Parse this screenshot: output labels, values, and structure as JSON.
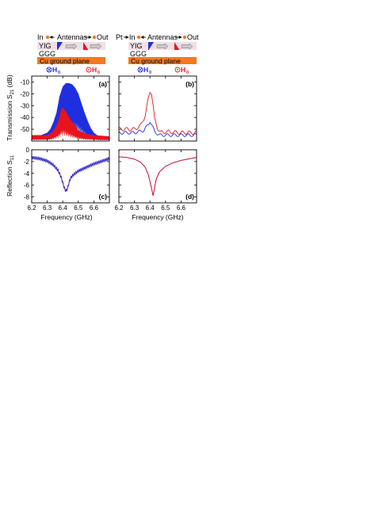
{
  "figure": {
    "ylabel_top_main": "Transmission S",
    "ylabel_top_sub": "21",
    "ylabel_top_unit": " (dB)",
    "ylabel_bottom_main": "Reflection S",
    "ylabel_bottom_sub": "11",
    "ylabel_bottom_unit": "",
    "xlabel": "Frequency (GHz)"
  },
  "schematics": [
    {
      "pt_label": "",
      "in_label": "In",
      "antennas_label": "Antennas",
      "out_label": "Out",
      "yig_label": "YIG",
      "ggg_label": "GGG",
      "ground_label": "Cu ground plane",
      "field_blue_label": "H",
      "field_blue_sub": "0",
      "field_red_label": "H",
      "field_red_sub": "0"
    },
    {
      "pt_label": "Pt",
      "in_label": "In",
      "antennas_label": "Antennas",
      "out_label": "Out",
      "yig_label": "YIG",
      "ggg_label": "GGG",
      "ground_label": "Cu ground plane",
      "field_blue_label": "H",
      "field_blue_sub": "0",
      "field_red_label": "H",
      "field_red_sub": "0"
    }
  ],
  "colors": {
    "blue": "#1f2fe0",
    "red": "#e8141c",
    "purple": "#6a2aa0",
    "orange": "#f47920",
    "yig": "#f2dfe6",
    "axis": "#000000"
  },
  "chart_data": [
    {
      "type": "line",
      "panel": "(a)",
      "xlim": [
        6.2,
        6.7
      ],
      "ylim": [
        -60,
        -5
      ],
      "x_ticks": [
        6.2,
        6.3,
        6.4,
        6.5,
        6.6
      ],
      "y_ticks": [
        -10,
        -20,
        -30,
        -40,
        -50
      ],
      "series": [
        {
          "color": "blue",
          "x": [
            6.2,
            6.26,
            6.3,
            6.32,
            6.34,
            6.36,
            6.38,
            6.4,
            6.42,
            6.44,
            6.46,
            6.48,
            6.5,
            6.52,
            6.54,
            6.56,
            6.58,
            6.6,
            6.62,
            6.64,
            6.7
          ],
          "y": [
            -55,
            -55,
            -53,
            -50,
            -44,
            -36,
            -22,
            -14,
            -11,
            -11,
            -12,
            -15,
            -20,
            -28,
            -36,
            -43,
            -49,
            -53,
            -55,
            -56,
            -56
          ]
        },
        {
          "color": "red",
          "x": [
            6.2,
            6.3,
            6.33,
            6.36,
            6.38,
            6.39,
            6.4,
            6.42,
            6.44,
            6.46,
            6.48,
            6.5,
            6.55,
            6.6,
            6.7
          ],
          "y": [
            -55,
            -55,
            -53,
            -47,
            -40,
            -33,
            -32,
            -35,
            -40,
            -44,
            -47,
            -51,
            -54,
            -55,
            -56
          ]
        }
      ]
    },
    {
      "type": "line",
      "panel": "(b)",
      "xlim": [
        6.2,
        6.7
      ],
      "ylim": [
        -60,
        -5
      ],
      "x_ticks": [
        6.2,
        6.3,
        6.4,
        6.5,
        6.6
      ],
      "y_ticks": [
        -10,
        -20,
        -30,
        -40,
        -50
      ],
      "series": [
        {
          "color": "red",
          "x": [
            6.2,
            6.3,
            6.34,
            6.37,
            6.39,
            6.4,
            6.41,
            6.42,
            6.43,
            6.45,
            6.47,
            6.5,
            6.6,
            6.7
          ],
          "y": [
            -50,
            -50,
            -47,
            -38,
            -24,
            -18,
            -19,
            -30,
            -42,
            -49,
            -53,
            -52,
            -53,
            -53
          ],
          "ripple": 1.5
        },
        {
          "color": "blue",
          "x": [
            6.2,
            6.3,
            6.36,
            6.39,
            6.4,
            6.41,
            6.43,
            6.46,
            6.5,
            6.6,
            6.7
          ],
          "y": [
            -53,
            -53,
            -51,
            -46,
            -43,
            -46,
            -52,
            -55,
            -55,
            -55,
            -55
          ],
          "ripple": 1.2
        }
      ]
    },
    {
      "type": "line",
      "panel": "(c)",
      "xlim": [
        6.2,
        6.7
      ],
      "ylim": [
        -9,
        0
      ],
      "x_ticks": [
        6.2,
        6.3,
        6.4,
        6.5,
        6.6
      ],
      "y_ticks": [
        0,
        -2,
        -4,
        -6,
        -8
      ],
      "series": [
        {
          "color": "blue",
          "x": [
            6.2,
            6.25,
            6.3,
            6.34,
            6.37,
            6.39,
            6.41,
            6.42,
            6.43,
            6.44,
            6.45,
            6.47,
            6.5,
            6.55,
            6.6,
            6.7
          ],
          "y": [
            -1.3,
            -1.5,
            -1.9,
            -2.6,
            -3.5,
            -4.7,
            -6.5,
            -7.0,
            -6.6,
            -5.6,
            -4.8,
            -4.2,
            -3.6,
            -3.0,
            -2.4,
            -1.5
          ],
          "jitter": 0.25
        },
        {
          "color": "purple",
          "x": [
            6.2,
            6.25,
            6.3,
            6.34,
            6.37,
            6.39,
            6.41,
            6.42,
            6.43,
            6.44,
            6.45,
            6.47,
            6.5,
            6.55,
            6.6,
            6.7
          ],
          "y": [
            -1.3,
            -1.5,
            -1.9,
            -2.6,
            -3.5,
            -4.7,
            -6.5,
            -7.0,
            -6.6,
            -5.6,
            -4.8,
            -4.2,
            -3.6,
            -3.0,
            -2.4,
            -1.5
          ]
        }
      ]
    },
    {
      "type": "line",
      "panel": "(d)",
      "xlim": [
        6.2,
        6.7
      ],
      "ylim": [
        -9,
        0
      ],
      "x_ticks": [
        6.2,
        6.3,
        6.4,
        6.5,
        6.6
      ],
      "y_ticks": [
        0,
        -2,
        -4,
        -6,
        -8
      ],
      "series": [
        {
          "color": "blue",
          "x": [
            6.2,
            6.25,
            6.3,
            6.34,
            6.37,
            6.39,
            6.41,
            6.42,
            6.43,
            6.44,
            6.46,
            6.5,
            6.55,
            6.6,
            6.7
          ],
          "y": [
            -1.2,
            -1.3,
            -1.6,
            -2.1,
            -3.0,
            -4.3,
            -6.5,
            -7.8,
            -6.4,
            -5.0,
            -3.8,
            -2.8,
            -2.2,
            -1.8,
            -1.3
          ]
        },
        {
          "color": "red",
          "x": [
            6.2,
            6.25,
            6.3,
            6.34,
            6.37,
            6.39,
            6.41,
            6.42,
            6.43,
            6.44,
            6.46,
            6.5,
            6.55,
            6.6,
            6.7
          ],
          "y": [
            -1.2,
            -1.3,
            -1.6,
            -2.1,
            -3.0,
            -4.3,
            -6.5,
            -7.8,
            -6.4,
            -5.0,
            -3.8,
            -2.8,
            -2.2,
            -1.8,
            -1.3
          ]
        }
      ]
    }
  ]
}
